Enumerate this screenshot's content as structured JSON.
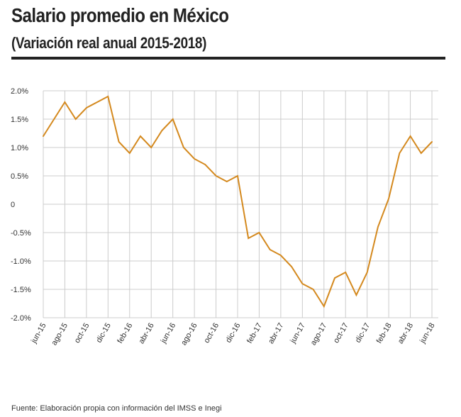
{
  "header": {
    "title": "Salario promedio en México",
    "subtitle": "(Variación real anual 2015-2018)"
  },
  "footer": {
    "source": "Fuente: Elaboración propia con información del IMSS e Inegi"
  },
  "colors": {
    "line": "#d4891e",
    "grid": "#cccccc",
    "text": "#222222"
  },
  "chart_data": {
    "type": "line",
    "title": "Salario promedio en México",
    "subtitle": "(Variación real anual 2015-2018)",
    "xlabel": "",
    "ylabel": "",
    "ylim": [
      -2.0,
      2.0
    ],
    "grid": true,
    "y_ticks": [
      {
        "value": 2.0,
        "label": "2.0%"
      },
      {
        "value": 1.5,
        "label": "1.5%"
      },
      {
        "value": 1.0,
        "label": "1.0%"
      },
      {
        "value": 0.5,
        "label": "0.5%"
      },
      {
        "value": 0,
        "label": "0"
      },
      {
        "value": -0.5,
        "label": "-0.5%"
      },
      {
        "value": -1.0,
        "label": "-1.0%"
      },
      {
        "value": -1.5,
        "label": "-1.5%"
      },
      {
        "value": -2.0,
        "label": "-2.0%"
      }
    ],
    "tick_labels": [
      "jun-15",
      "ago-15",
      "oct-15",
      "dic-15",
      "feb-16",
      "abr-16",
      "jun-16",
      "ago-16",
      "oct-16",
      "dic-16",
      "feb-17",
      "abr-17",
      "jun-17",
      "ago-17",
      "oct-17",
      "dic-17",
      "feb-18",
      "abr-18",
      "jun-18"
    ],
    "categories": [
      "jun-15",
      "jul-15",
      "ago-15",
      "sep-15",
      "oct-15",
      "nov-15",
      "dic-15",
      "ene-16",
      "feb-16",
      "mar-16",
      "abr-16",
      "may-16",
      "jun-16",
      "jul-16",
      "ago-16",
      "sep-16",
      "oct-16",
      "nov-16",
      "dic-16",
      "ene-17",
      "feb-17",
      "mar-17",
      "abr-17",
      "may-17",
      "jun-17",
      "jul-17",
      "ago-17",
      "sep-17",
      "oct-17",
      "nov-17",
      "dic-17",
      "ene-18",
      "feb-18",
      "mar-18",
      "abr-18",
      "may-18",
      "jun-18"
    ],
    "series": [
      {
        "values": [
          1.2,
          1.5,
          1.8,
          1.5,
          1.7,
          1.8,
          1.9,
          1.1,
          0.9,
          1.2,
          1.0,
          1.3,
          1.5,
          1.0,
          0.8,
          0.7,
          0.5,
          0.4,
          0.5,
          -0.6,
          -0.5,
          -0.8,
          -0.9,
          -1.1,
          -1.4,
          -1.5,
          -1.8,
          -1.3,
          -1.2,
          -1.6,
          -1.2,
          -0.4,
          0.1,
          0.9,
          1.2,
          0.9,
          1.1
        ]
      }
    ]
  }
}
